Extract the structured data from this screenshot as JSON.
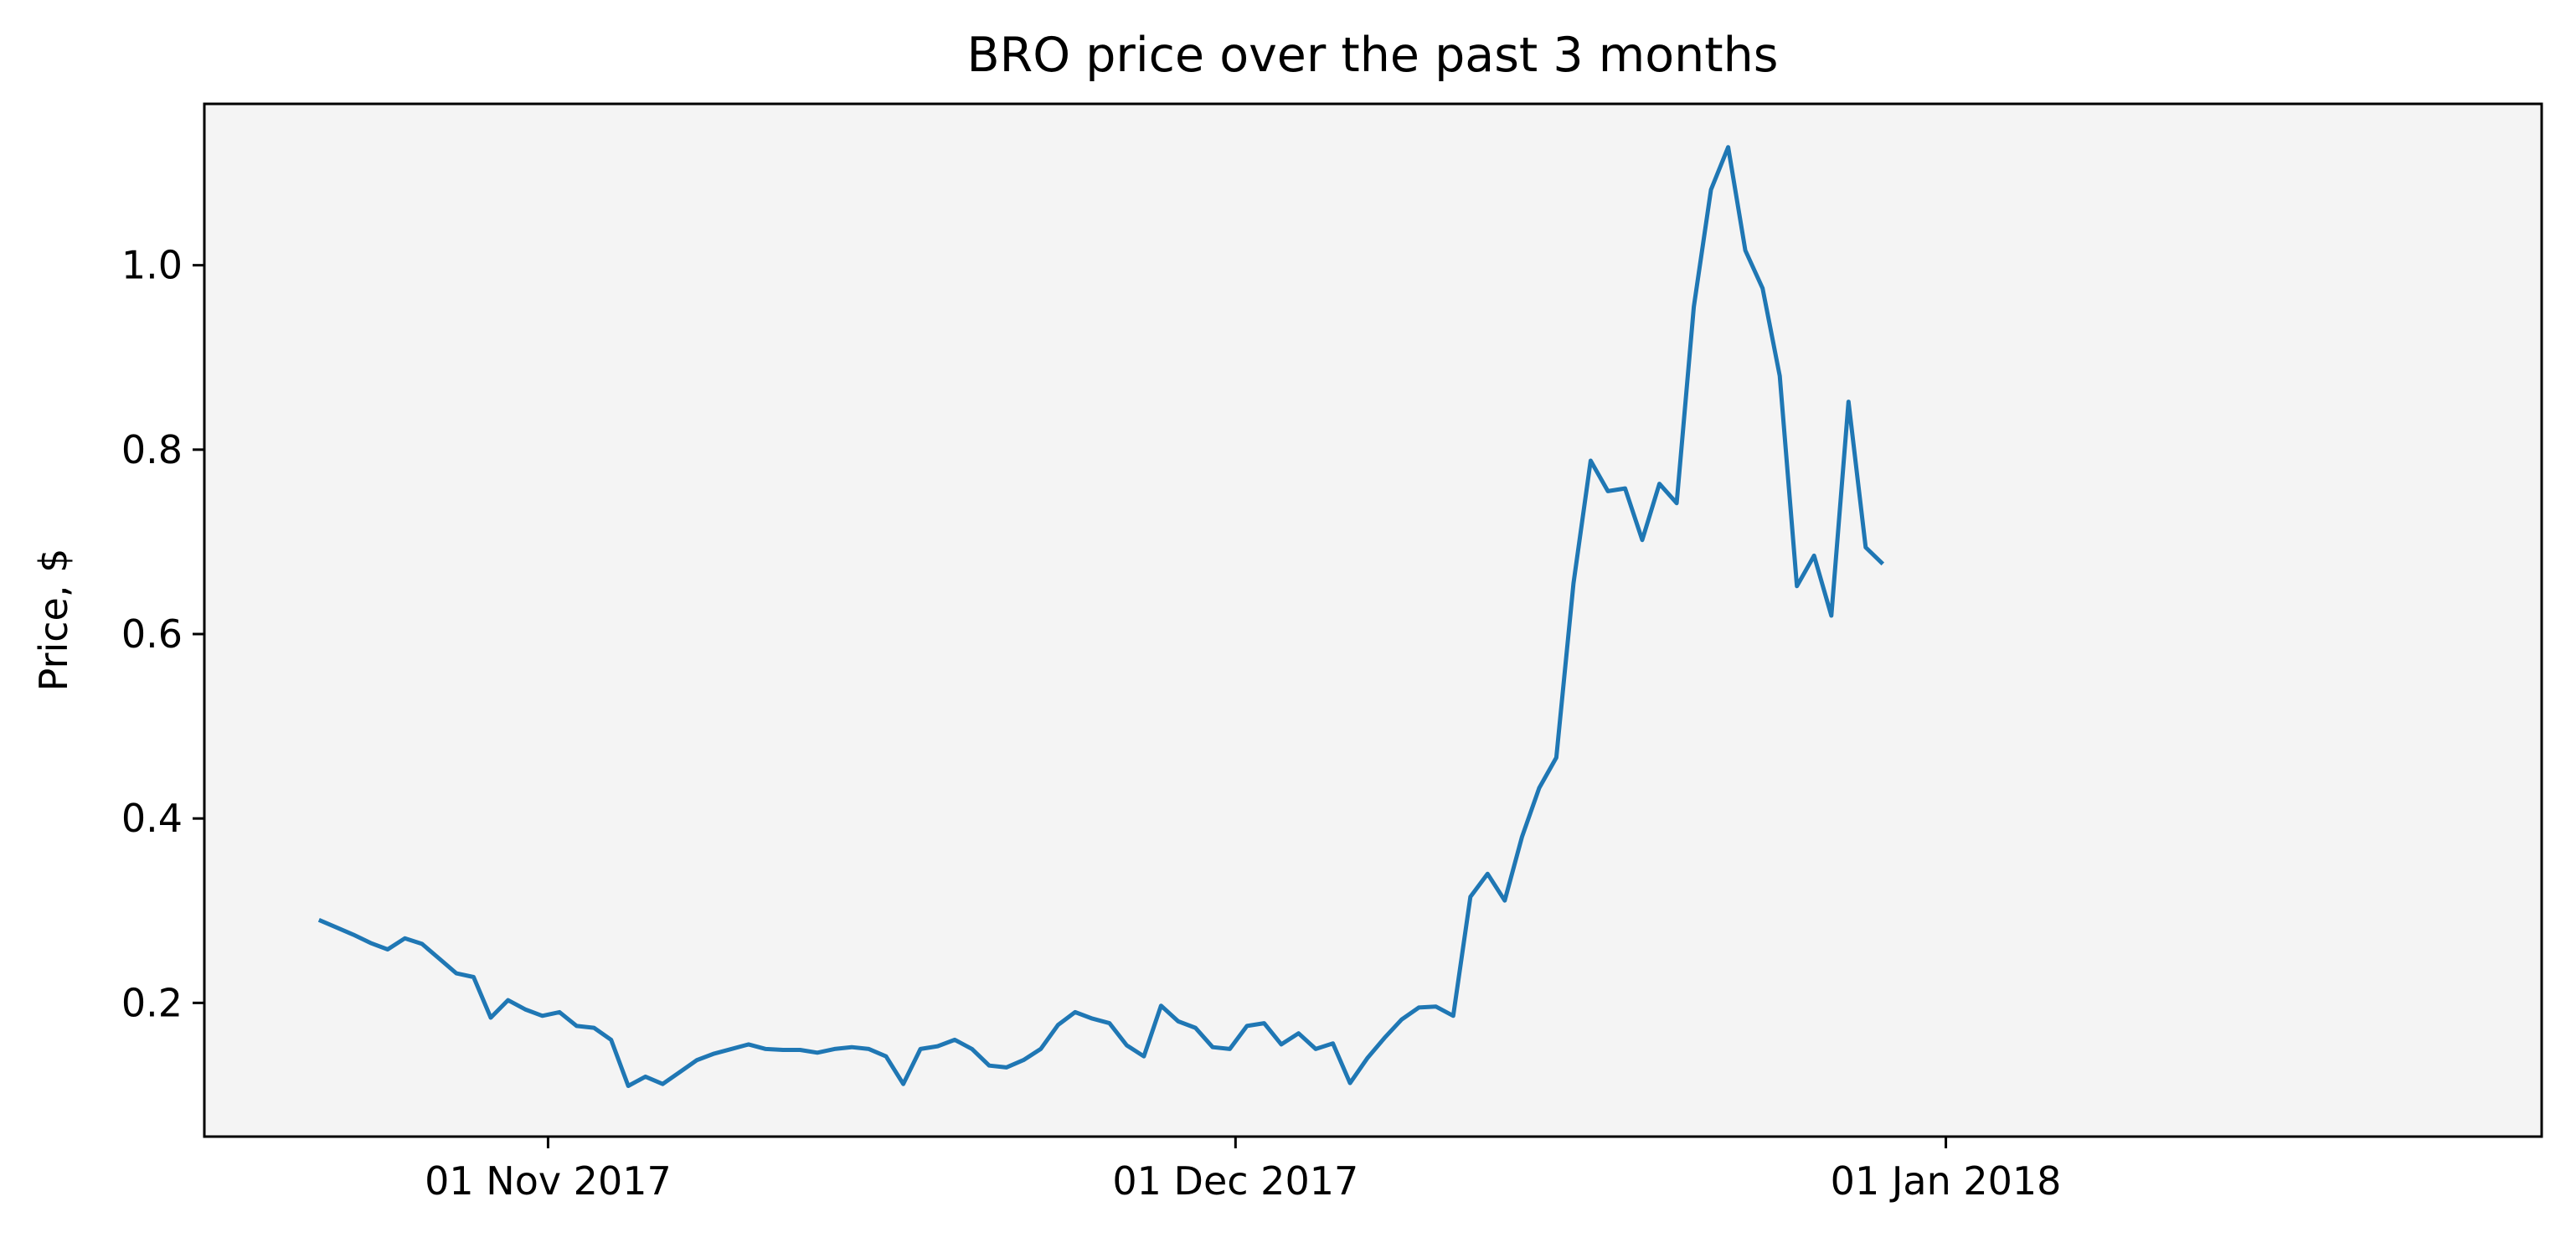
{
  "chart_data": {
    "type": "line",
    "title": "BRO price over the past 3 months",
    "xlabel": "",
    "ylabel": "Price, $",
    "x_start": "2017-10-22",
    "x_interval_days": 0.75,
    "xlim": [
      "2017-10-17",
      "2018-01-27"
    ],
    "ylim": [
      0.055,
      1.175
    ],
    "x_ticks": [
      {
        "date": "2017-11-01",
        "label": "01 Nov 2017"
      },
      {
        "date": "2017-12-01",
        "label": "01 Dec 2017"
      },
      {
        "date": "2018-01-01",
        "label": "01 Jan 2018"
      }
    ],
    "y_ticks": [
      {
        "value": 0.2,
        "label": "0.2"
      },
      {
        "value": 0.4,
        "label": "0.4"
      },
      {
        "value": 0.6,
        "label": "0.6"
      },
      {
        "value": 0.8,
        "label": "0.8"
      },
      {
        "value": 1.0,
        "label": "1.0"
      }
    ],
    "grid": false,
    "plot_background": "#f4f4f4",
    "line_color": "#1f77b4",
    "series": [
      {
        "values": [
          0.29,
          0.282,
          0.274,
          0.265,
          0.258,
          0.27,
          0.264,
          0.248,
          0.232,
          0.228,
          0.184,
          0.203,
          0.193,
          0.186,
          0.19,
          0.175,
          0.173,
          0.16,
          0.11,
          0.12,
          0.112,
          0.125,
          0.138,
          0.145,
          0.15,
          0.155,
          0.15,
          0.149,
          0.149,
          0.146,
          0.15,
          0.152,
          0.15,
          0.142,
          0.112,
          0.15,
          0.153,
          0.16,
          0.15,
          0.132,
          0.13,
          0.138,
          0.15,
          0.176,
          0.19,
          0.183,
          0.178,
          0.154,
          0.142,
          0.197,
          0.18,
          0.173,
          0.152,
          0.15,
          0.175,
          0.178,
          0.155,
          0.167,
          0.15,
          0.156,
          0.113,
          0.14,
          0.162,
          0.182,
          0.195,
          0.196,
          0.186,
          0.315,
          0.34,
          0.311,
          0.38,
          0.433,
          0.466,
          0.655,
          0.788,
          0.755,
          0.758,
          0.702,
          0.763,
          0.742,
          0.955,
          1.082,
          1.128,
          1.016,
          0.975,
          0.88,
          0.652,
          0.685,
          0.62,
          0.852,
          0.694,
          0.676
        ]
      }
    ]
  }
}
